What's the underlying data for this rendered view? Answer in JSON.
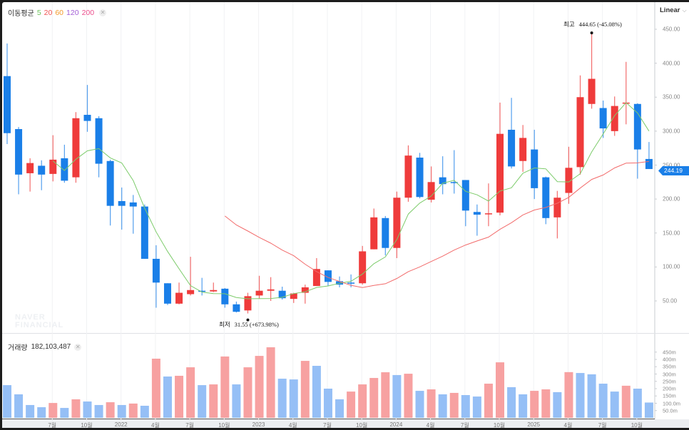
{
  "legend": {
    "title": "이동평균",
    "periods": [
      "5",
      "20",
      "60",
      "120",
      "200"
    ],
    "colors": [
      "#6cc35a",
      "#f05252",
      "#f39a2b",
      "#a35fd6",
      "#ec4d8c"
    ],
    "close_icon": "close-icon"
  },
  "volume_legend": {
    "title": "거래량",
    "value": "182,103,487",
    "close_icon": "close-icon"
  },
  "scale_button": {
    "label": "Linear",
    "icon": "chevron-down-icon"
  },
  "watermark": [
    "NAVER",
    "FINANCIAL"
  ],
  "current_price": "244.19",
  "annotations": {
    "high": {
      "label": "최고",
      "value": "444.65",
      "change": "(-45.08%)"
    },
    "low": {
      "label": "최저",
      "value": "31.55",
      "change": "(+673.98%)"
    }
  },
  "colors": {
    "up": "#ef3b3b",
    "down": "#1a7fe8",
    "vol_up": "#f7a1a1",
    "vol_down": "#95bff6",
    "ma5": "#7ccb6a",
    "ma20": "#f26b6b",
    "grid": "#f1f2f4",
    "axis": "#c9ccd1"
  },
  "chart_data": {
    "type": "candlestick",
    "interval": "monthly",
    "x_tick_labels": [
      "7월",
      "10월",
      "2022",
      "4월",
      "7월",
      "10월",
      "2023",
      "4월",
      "7월",
      "10월",
      "2024",
      "4월",
      "7월",
      "10월",
      "2025",
      "4월",
      "7월",
      "10월"
    ],
    "y_tick_labels": [
      "450.00",
      "400.00",
      "350.00",
      "300.00",
      "250.00",
      "200.00",
      "150.00",
      "100.00",
      "50.00"
    ],
    "y_ticks": [
      450,
      400,
      350,
      300,
      250,
      200,
      150,
      100,
      50
    ],
    "ylim": [
      0,
      470
    ],
    "volume_tick_labels": [
      "450m",
      "400m",
      "350m",
      "300m",
      "250m",
      "200m",
      "150m",
      "100.0m",
      "50.0m"
    ],
    "volume_ticks": [
      450,
      400,
      350,
      300,
      250,
      200,
      150,
      100,
      50
    ],
    "volume_unit": "millions",
    "moving_averages": [
      5,
      20
    ],
    "ohlc": [
      [
        381,
        429,
        281,
        297
      ],
      [
        303,
        306,
        207,
        236
      ],
      [
        238,
        260,
        211,
        253
      ],
      [
        249,
        257,
        213,
        236
      ],
      [
        237,
        294,
        226,
        258
      ],
      [
        260,
        280,
        224,
        227
      ],
      [
        232,
        328,
        224,
        319
      ],
      [
        324,
        368,
        299,
        315
      ],
      [
        319,
        322,
        232,
        252
      ],
      [
        256,
        258,
        161,
        190
      ],
      [
        197,
        217,
        155,
        190
      ],
      [
        195,
        206,
        149,
        189
      ],
      [
        189,
        192,
        112,
        112
      ],
      [
        112,
        132,
        40,
        77
      ],
      [
        76,
        76,
        44,
        46
      ],
      [
        46,
        77,
        45,
        62
      ],
      [
        60,
        115,
        58,
        66
      ],
      [
        65,
        84,
        58,
        64
      ],
      [
        64,
        77,
        63,
        66
      ],
      [
        68,
        69,
        40,
        45
      ],
      [
        45,
        49,
        33,
        34
      ],
      [
        36,
        62,
        31.55,
        57
      ],
      [
        58,
        87,
        53,
        65
      ],
      [
        65,
        85,
        50,
        67
      ],
      [
        65,
        71,
        52,
        54
      ],
      [
        53,
        62,
        47,
        61
      ],
      [
        62,
        74,
        46,
        70
      ],
      [
        72,
        113,
        72,
        97
      ],
      [
        95,
        95,
        72,
        78
      ],
      [
        79,
        86,
        70,
        74
      ],
      [
        77,
        89,
        70,
        76
      ],
      [
        76,
        131,
        74,
        123
      ],
      [
        126,
        186,
        126,
        173
      ],
      [
        172,
        175,
        117,
        128
      ],
      [
        128,
        211,
        113,
        202
      ],
      [
        202,
        279,
        196,
        264
      ],
      [
        261,
        268,
        201,
        203
      ],
      [
        199,
        248,
        195,
        225
      ],
      [
        232,
        263,
        207,
        222
      ],
      [
        225,
        272,
        208,
        224
      ],
      [
        228,
        228,
        160,
        183
      ],
      [
        181,
        192,
        146,
        177
      ],
      [
        178,
        223,
        160,
        179
      ],
      [
        180,
        342,
        176,
        296
      ],
      [
        302,
        349,
        245,
        248
      ],
      [
        256,
        309,
        240,
        290
      ],
      [
        273,
        302,
        200,
        216
      ],
      [
        232,
        233,
        163,
        172
      ],
      [
        173,
        212,
        142,
        202
      ],
      [
        209,
        277,
        193,
        246
      ],
      [
        247,
        382,
        236,
        350
      ],
      [
        340,
        444.65,
        333,
        377
      ],
      [
        334,
        345,
        290,
        304
      ],
      [
        300,
        351,
        293,
        337
      ],
      [
        341,
        402,
        310,
        342
      ],
      [
        340,
        341,
        230,
        273
      ],
      [
        259,
        284,
        244.19,
        244.19
      ]
    ],
    "volume": [
      224,
      161,
      88,
      73,
      102,
      68,
      127,
      112,
      88,
      107,
      88,
      98,
      83,
      405,
      283,
      288,
      346,
      224,
      229,
      420,
      229,
      346,
      424,
      483,
      268,
      263,
      390,
      356,
      200,
      127,
      180,
      229,
      273,
      312,
      293,
      302,
      185,
      195,
      161,
      171,
      156,
      146,
      234,
      380,
      210,
      161,
      185,
      195,
      176,
      313,
      307,
      298,
      234,
      180,
      220,
      200,
      105
    ]
  }
}
